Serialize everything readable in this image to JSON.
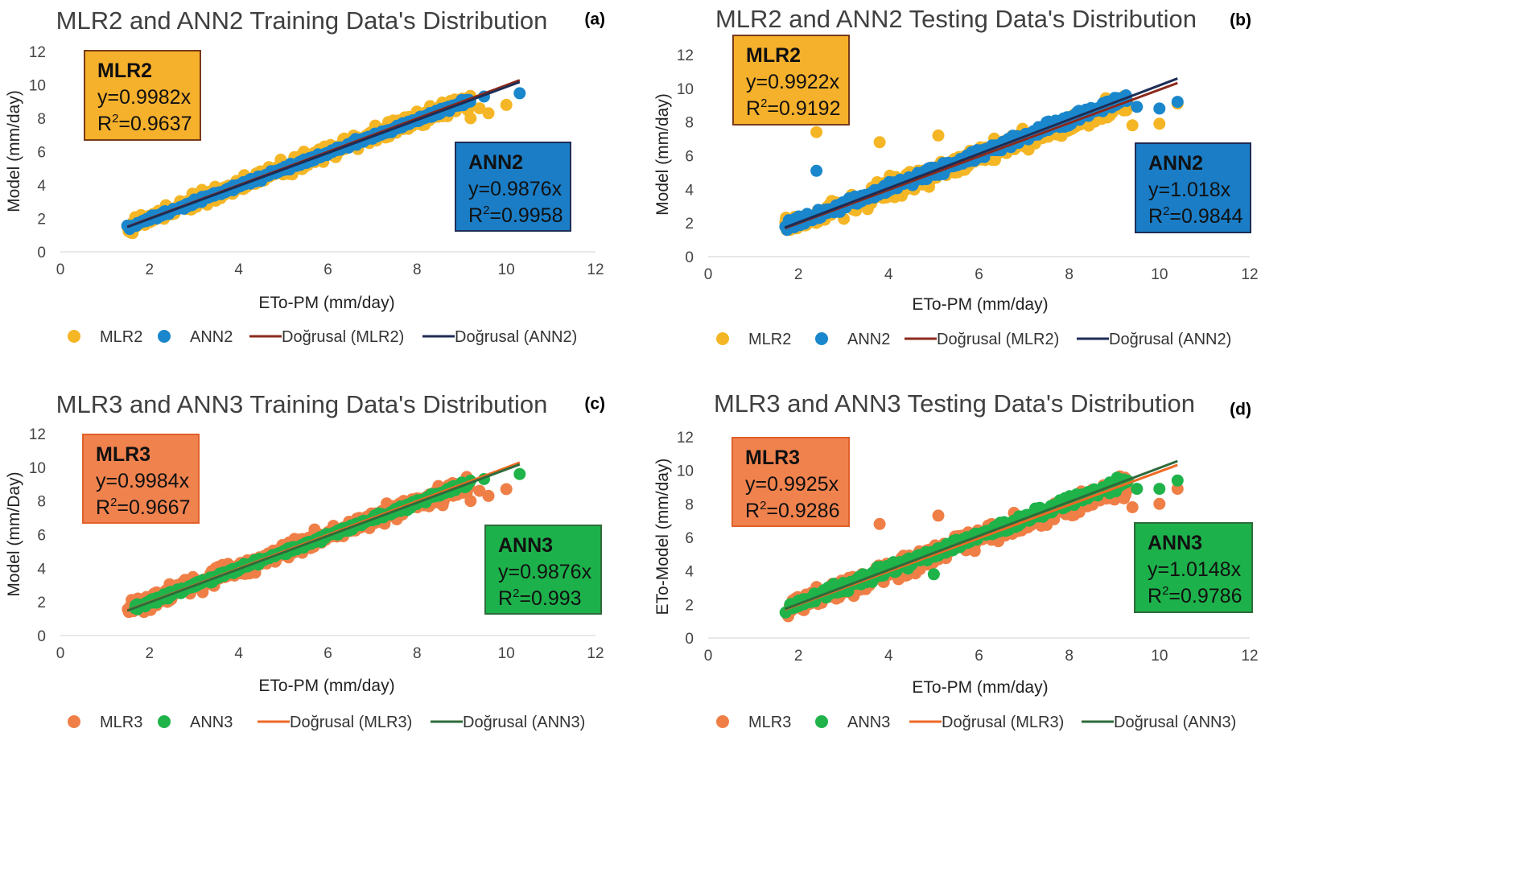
{
  "chart_data": [
    {
      "type": "scatter",
      "panel_label": "(a)",
      "title": "MLR2 and ANN2 Training Data's Distribution",
      "xlabel": "ETo-PM (mm/day)",
      "ylabel": "Model (mm/day)",
      "xlim": [
        0,
        12
      ],
      "ylim": [
        0,
        12
      ],
      "xticks": [
        "0",
        "2",
        "4",
        "6",
        "8",
        "10",
        "12"
      ],
      "yticks": [
        "0",
        "2",
        "4",
        "6",
        "8",
        "10",
        "12"
      ],
      "x_range": [
        1.5,
        10.3
      ],
      "series": [
        {
          "name": "MLR2",
          "kind": "scatter",
          "color": "#F5B626",
          "slope": 0.9982,
          "r2": 0.9637,
          "spread": 0.45,
          "extra": [
            [
              9.2,
              8.0
            ],
            [
              9.6,
              8.3
            ],
            [
              10.0,
              8.8
            ],
            [
              9.4,
              8.6
            ]
          ]
        },
        {
          "name": "ANN2",
          "kind": "scatter",
          "color": "#1A87CC",
          "slope": 0.9876,
          "r2": 0.9958,
          "spread": 0.14,
          "extra": [
            [
              9.0,
              9.1
            ],
            [
              9.5,
              9.3
            ],
            [
              10.3,
              9.5
            ]
          ]
        }
      ],
      "trendlines": [
        {
          "name": "Doğrusal (MLR2)",
          "color": "#8B2A1C",
          "slope": 0.9982
        },
        {
          "name": "Doğrusal (ANN2)",
          "color": "#1E2D55",
          "slope": 0.9876
        }
      ],
      "boxes": [
        {
          "title": "MLR2",
          "equation": "y=0.9982x",
          "r2_label": "R",
          "r2_sup": "2",
          "r2_value": "=0.9637",
          "fill": "#F5B02C",
          "border": "#7A3B1A",
          "pos": "top-left"
        },
        {
          "title": "ANN2",
          "equation": "y=0.9876x",
          "r2_label": "R",
          "r2_sup": "2",
          "r2_value": "=0.9958",
          "fill": "#1A7DC6",
          "border": "#1E2D55",
          "pos": "right"
        }
      ]
    },
    {
      "type": "scatter",
      "panel_label": "(b)",
      "title": "MLR2 and ANN2 Testing Data's Distribution",
      "xlabel": "ETo-PM (mm/day)",
      "ylabel": "Model (mm/day)",
      "xlim": [
        0,
        12
      ],
      "ylim": [
        0,
        12
      ],
      "xticks": [
        "0",
        "2",
        "4",
        "6",
        "8",
        "10",
        "12"
      ],
      "yticks": [
        "0",
        "2",
        "4",
        "6",
        "8",
        "10",
        "12"
      ],
      "x_range": [
        1.7,
        10.4
      ],
      "series": [
        {
          "name": "MLR2",
          "kind": "scatter",
          "color": "#F5B626",
          "slope": 0.9922,
          "r2": 0.9192,
          "spread": 0.55,
          "extra": [
            [
              2.4,
              7.4
            ],
            [
              3.8,
              6.8
            ],
            [
              5.1,
              7.2
            ],
            [
              9.4,
              7.8
            ],
            [
              10.0,
              7.9
            ],
            [
              10.4,
              9.1
            ]
          ]
        },
        {
          "name": "ANN2",
          "kind": "scatter",
          "color": "#1A87CC",
          "slope": 1.018,
          "r2": 0.9844,
          "spread": 0.28,
          "extra": [
            [
              2.4,
              5.1
            ],
            [
              9.5,
              8.9
            ],
            [
              10.0,
              8.8
            ],
            [
              10.4,
              9.2
            ]
          ]
        }
      ],
      "trendlines": [
        {
          "name": "Doğrusal (MLR2)",
          "color": "#8B2A1C",
          "slope": 0.9922
        },
        {
          "name": "Doğrusal (ANN2)",
          "color": "#1E2D55",
          "slope": 1.018
        }
      ],
      "boxes": [
        {
          "title": "MLR2",
          "equation": "y=0.9922x",
          "r2_label": "R",
          "r2_sup": "2",
          "r2_value": "=0.9192",
          "fill": "#F5B02C",
          "border": "#7A3B1A",
          "pos": "top-left"
        },
        {
          "title": "ANN2",
          "equation": "y=1.018x",
          "r2_label": "R",
          "r2_sup": "2",
          "r2_value": "=0.9844",
          "fill": "#1A7DC6",
          "border": "#1E2D55",
          "pos": "right"
        }
      ]
    },
    {
      "type": "scatter",
      "panel_label": "(c)",
      "title": "MLR3 and ANN3 Training Data's Distribution",
      "xlabel": "ETo-PM (mm/day)",
      "ylabel": "Model (mm/Day)",
      "xlim": [
        0,
        12
      ],
      "ylim": [
        0,
        12
      ],
      "xticks": [
        "0",
        "2",
        "4",
        "6",
        "8",
        "10",
        "12"
      ],
      "yticks": [
        "0",
        "2",
        "4",
        "6",
        "8",
        "10",
        "12"
      ],
      "x_range": [
        1.5,
        10.3
      ],
      "series": [
        {
          "name": "MLR3",
          "kind": "scatter",
          "color": "#EF7F47",
          "slope": 0.9984,
          "r2": 0.9667,
          "spread": 0.45,
          "extra": [
            [
              9.2,
              8.0
            ],
            [
              9.6,
              8.3
            ],
            [
              10.0,
              8.7
            ],
            [
              9.4,
              8.6
            ]
          ]
        },
        {
          "name": "ANN3",
          "kind": "scatter",
          "color": "#1FB34A",
          "slope": 0.9876,
          "r2": 0.993,
          "spread": 0.16,
          "extra": [
            [
              9.0,
              9.1
            ],
            [
              9.5,
              9.3
            ],
            [
              10.3,
              9.6
            ]
          ]
        }
      ],
      "trendlines": [
        {
          "name": "Doğrusal (MLR3)",
          "color": "#EE6A24",
          "slope": 0.9984
        },
        {
          "name": "Doğrusal (ANN3)",
          "color": "#2E6B3A",
          "slope": 0.9876
        }
      ],
      "boxes": [
        {
          "title": "MLR3",
          "equation": "y=0.9984x",
          "r2_label": "R",
          "r2_sup": "2",
          "r2_value": "=0.9667",
          "fill": "#F0824E",
          "border": "#E0602A",
          "pos": "top-left"
        },
        {
          "title": "ANN3",
          "equation": "y=0.9876x",
          "r2_label": "R",
          "r2_sup": "2",
          "r2_value": "=0.993",
          "fill": "#1DB14B",
          "border": "#2E6B3A",
          "pos": "right"
        }
      ]
    },
    {
      "type": "scatter",
      "panel_label": "(d)",
      "title": "MLR3 and ANN3 Testing Data's Distribution",
      "xlabel": "ETo-PM (mm/day)",
      "ylabel": "ETo-Model (mm/day)",
      "xlim": [
        0,
        12
      ],
      "ylim": [
        0,
        12
      ],
      "xticks": [
        "0",
        "2",
        "4",
        "6",
        "8",
        "10",
        "12"
      ],
      "yticks": [
        "0",
        "2",
        "4",
        "6",
        "8",
        "10",
        "12"
      ],
      "x_range": [
        1.7,
        10.4
      ],
      "series": [
        {
          "name": "MLR3",
          "kind": "scatter",
          "color": "#EF7F47",
          "slope": 0.9925,
          "r2": 0.9286,
          "spread": 0.55,
          "extra": [
            [
              3.8,
              6.8
            ],
            [
              5.1,
              7.3
            ],
            [
              9.4,
              7.8
            ],
            [
              10.0,
              8.0
            ],
            [
              10.4,
              8.9
            ]
          ]
        },
        {
          "name": "ANN3",
          "kind": "scatter",
          "color": "#1FB34A",
          "slope": 1.0148,
          "r2": 0.9786,
          "spread": 0.3,
          "extra": [
            [
              5.0,
              3.8
            ],
            [
              9.5,
              8.9
            ],
            [
              10.0,
              8.9
            ],
            [
              10.4,
              9.4
            ]
          ]
        }
      ],
      "trendlines": [
        {
          "name": "Doğrusal (MLR3)",
          "color": "#EE6A24",
          "slope": 0.9925
        },
        {
          "name": "Doğrusal (ANN3)",
          "color": "#2E6B3A",
          "slope": 1.0148
        }
      ],
      "boxes": [
        {
          "title": "MLR3",
          "equation": "y=0.9925x",
          "r2_label": "R",
          "r2_sup": "2",
          "r2_value": "=0.9286",
          "fill": "#F0824E",
          "border": "#E0602A",
          "pos": "top-left"
        },
        {
          "title": "ANN3",
          "equation": "y=1.0148x",
          "r2_label": "R",
          "r2_sup": "2",
          "r2_value": "=0.9786",
          "fill": "#1DB14B",
          "border": "#2E6B3A",
          "pos": "right"
        }
      ]
    }
  ]
}
